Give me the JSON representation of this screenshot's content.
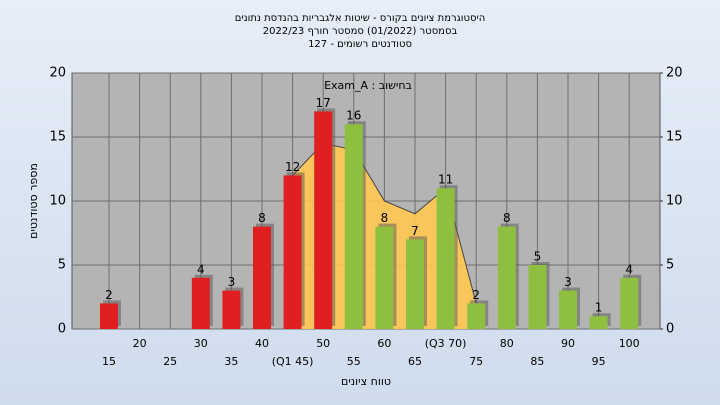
{
  "chart_data": {
    "type": "bar",
    "title": "היסטוגרמת ציונים בקורס - שיטות אלגבריות בהנדסת נתונים",
    "subtitle": "בסמסטר (01/2022) סמסטר חורף 2022/23",
    "subtitle2": "סטודנטים רשומים - 127",
    "annotation": "בחישוב : Exam_A",
    "x_label": "טווח ציונים",
    "y_label": "מספר סטודנטים",
    "categories": [
      "15",
      "20",
      "25",
      "30",
      "35",
      "40",
      "(Q1 45)",
      "50",
      "55",
      "60",
      "65",
      "(Q3 70)",
      "75",
      "80",
      "85",
      "90",
      "95",
      "100"
    ],
    "values": [
      2,
      null,
      null,
      4,
      3,
      8,
      12,
      17,
      16,
      8,
      7,
      11,
      2,
      8,
      5,
      3,
      1,
      4
    ],
    "colors": [
      "#e02020",
      null,
      null,
      "#e02020",
      "#e02020",
      "#e02020",
      "#e02020",
      "#e02020",
      "#8fbf3f",
      "#8fbf3f",
      "#8fbf3f",
      "#8fbf3f",
      "#8fbf3f",
      "#8fbf3f",
      "#8fbf3f",
      "#8fbf3f",
      "#8fbf3f",
      "#8fbf3f"
    ],
    "overlay": {
      "color": "#ffc850",
      "values": [
        null,
        null,
        null,
        null,
        null,
        null,
        12,
        14.5,
        14,
        10,
        9,
        11,
        2,
        null,
        null,
        null,
        null,
        null
      ]
    },
    "ylim": [
      0,
      20
    ],
    "yticks": [
      0,
      5,
      10,
      15,
      20
    ],
    "y2lim": [
      0,
      20
    ],
    "y2ticks": [
      0,
      5,
      10,
      15,
      20
    ],
    "grid": true
  }
}
